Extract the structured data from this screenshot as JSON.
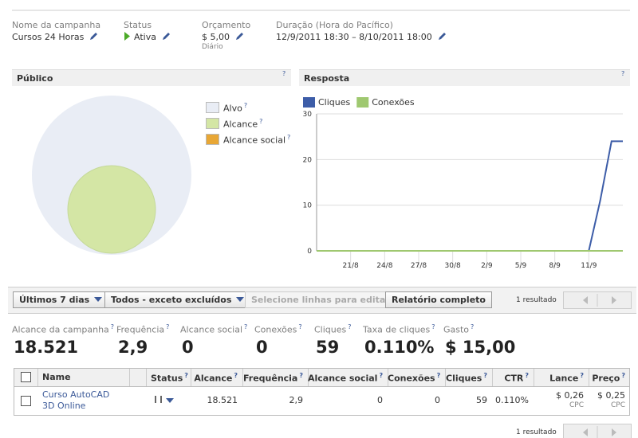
{
  "help": "?",
  "header": {
    "fields": [
      {
        "label": "Nome da campanha",
        "value": "Cursos 24 Horas"
      },
      {
        "label": "Status",
        "value": "Ativa"
      },
      {
        "label": "Orçamento",
        "value": "$ 5,00",
        "note": "Diário"
      },
      {
        "label": "Duração (Hora do Pacífico)",
        "value": "12/9/2011 18:30 – 8/10/2011 18:00"
      }
    ]
  },
  "audience": {
    "title": "Público",
    "legend": [
      {
        "name": "Alvo",
        "color": "#e9edf5"
      },
      {
        "name": "Alcance",
        "color": "#d4e6a5"
      },
      {
        "name": "Alcance social",
        "color": "#e8a735"
      }
    ]
  },
  "chart_data": {
    "type": "line",
    "title": "Resposta",
    "categories": [
      null,
      null,
      null,
      "21/8",
      null,
      null,
      "24/8",
      null,
      null,
      "27/8",
      null,
      null,
      "30/8",
      null,
      null,
      "2/9",
      null,
      null,
      "5/9",
      null,
      null,
      "8/9",
      null,
      null,
      "11/9",
      null,
      null,
      null
    ],
    "series": [
      {
        "name": "Cliques",
        "color": "#3d5da8",
        "values": [
          0,
          0,
          0,
          0,
          0,
          0,
          0,
          0,
          0,
          0,
          0,
          0,
          0,
          0,
          0,
          0,
          0,
          0,
          0,
          0,
          0,
          0,
          0,
          0,
          0,
          11,
          24,
          24
        ]
      },
      {
        "name": "Conexões",
        "color": "#9fc870",
        "values": [
          0,
          0,
          0,
          0,
          0,
          0,
          0,
          0,
          0,
          0,
          0,
          0,
          0,
          0,
          0,
          0,
          0,
          0,
          0,
          0,
          0,
          0,
          0,
          0,
          0,
          0,
          0,
          0
        ]
      }
    ],
    "ylim": [
      0,
      30
    ],
    "yticks": [
      0,
      10,
      20,
      30
    ],
    "grid": true,
    "legend": "top-left"
  },
  "toolbar": {
    "buttons": [
      "Últimos 7 dias",
      "Todos - exceto excluídos",
      "Selecione linhas para editar",
      "Relatório completo"
    ],
    "result_count": "1 resultado"
  },
  "summary": [
    {
      "label": "Alcance da campanha",
      "value": "18.521"
    },
    {
      "label": "Frequência",
      "value": "2,9"
    },
    {
      "label": "Alcance social",
      "value": "0"
    },
    {
      "label": "Conexões",
      "value": "0"
    },
    {
      "label": "Cliques",
      "value": "59"
    },
    {
      "label": "Taxa de cliques",
      "value": "0.110%"
    },
    {
      "label": "Gasto",
      "value": "$ 15,00"
    }
  ],
  "table": {
    "columns": [
      "Name",
      "Status",
      "Alcance",
      "Frequência",
      "Alcance social",
      "Conexões",
      "Cliques",
      "CTR",
      "Lance",
      "Preço"
    ],
    "rows": [
      {
        "name": "Curso AutoCAD 3D Online",
        "values": [
          "18.521",
          "2,9",
          "0",
          "0",
          "59",
          "0.110%",
          "$ 0,26",
          "$ 0,25"
        ],
        "bid_unit": "CPC",
        "price_unit": "CPC"
      }
    ]
  },
  "footer": {
    "result_count": "1 resultado"
  }
}
